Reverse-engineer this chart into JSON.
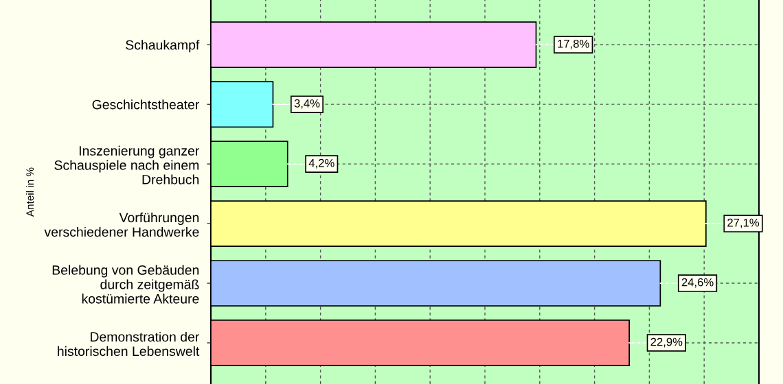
{
  "chart_data": {
    "type": "bar",
    "orientation": "horizontal",
    "ylabel": "Anteil in %",
    "categories": [
      "Schaukampf",
      "Geschichtstheater",
      "Inszenierung ganzer\nSchauspiele nach einem\nDrehbuch",
      "Vorführungen\nverschiedener Handwerke",
      "Belebung von Gebäuden\ndurch zeitgemäß\nkostümierte Akteure",
      "Demonstration der\nhistorischen Lebenswelt"
    ],
    "values": [
      17.8,
      3.4,
      4.2,
      27.1,
      24.6,
      22.9
    ],
    "value_labels": [
      "17,8%",
      "3,4%",
      "4,2%",
      "27,1%",
      "24,6%",
      "22,9%"
    ],
    "colors": [
      "#ffc0ff",
      "#80ffff",
      "#90ff90",
      "#ffff90",
      "#a0c0ff",
      "#ff9090"
    ],
    "xlim": [
      0,
      30
    ],
    "xticks": [
      {
        "value": 3,
        "label": null
      },
      {
        "value": 6,
        "label": null
      },
      {
        "value": 9,
        "label": null
      },
      {
        "value": 12,
        "label": null
      },
      {
        "value": 15,
        "label": null
      },
      {
        "value": 18,
        "label": null
      },
      {
        "value": 21,
        "label": null
      },
      {
        "value": 24,
        "label": null
      },
      {
        "value": 27,
        "label": null
      }
    ],
    "tick_labels": "y",
    "grid": true,
    "legend": false
  }
}
